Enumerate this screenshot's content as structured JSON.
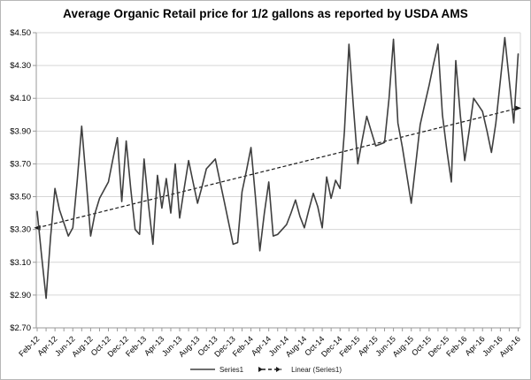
{
  "chart_data": {
    "type": "line",
    "title": "Average Organic Retail price for 1/2 gallons as reported by USDA AMS",
    "xlabel": "",
    "ylabel": "",
    "ylim": [
      2.7,
      4.5
    ],
    "ytick_step": 0.2,
    "ytick_labels": [
      "$2.70",
      "$2.90",
      "$3.10",
      "$3.30",
      "$3.50",
      "$3.70",
      "$3.90",
      "$4.10",
      "$4.30",
      "$4.50"
    ],
    "x_tick_labels": [
      "Feb-12",
      "Apr-12",
      "Jun-12",
      "Aug-12",
      "Oct-12",
      "Dec-12",
      "Feb-13",
      "Apr-13",
      "Jun-13",
      "Aug-13",
      "Oct-13",
      "Dec-13",
      "Feb-14",
      "Apr-14",
      "Jun-14",
      "Aug-14",
      "Oct-14",
      "Dec-14",
      "Feb-15",
      "Apr-15",
      "Jun-15",
      "Aug-15",
      "Oct-15",
      "Dec-15",
      "Feb-16",
      "Apr-16",
      "Jun-16",
      "Aug-16"
    ],
    "points_per_label_interval": 4,
    "cadence": "semi-monthly",
    "grid": "horizontal",
    "legend_position": "bottom",
    "series": [
      {
        "name": "Series1",
        "start": "Feb-12",
        "end": "Aug-16",
        "values": [
          3.41,
          3.14,
          2.88,
          3.25,
          3.55,
          3.42,
          3.34,
          3.26,
          3.31,
          3.6,
          3.93,
          3.6,
          3.26,
          3.4,
          3.49,
          3.54,
          3.59,
          3.73,
          3.86,
          3.47,
          3.84,
          3.55,
          3.3,
          3.27,
          3.73,
          3.45,
          3.21,
          3.63,
          3.43,
          3.61,
          3.4,
          3.7,
          3.37,
          3.55,
          3.72,
          3.59,
          3.46,
          3.56,
          3.67,
          3.7,
          3.73,
          3.6,
          3.47,
          3.34,
          3.21,
          3.22,
          3.53,
          3.66,
          3.8,
          3.5,
          3.17,
          3.4,
          3.59,
          3.26,
          3.27,
          3.3,
          3.33,
          3.4,
          3.48,
          3.38,
          3.31,
          3.42,
          3.52,
          3.44,
          3.31,
          3.62,
          3.49,
          3.6,
          3.55,
          3.9,
          4.43,
          4.05,
          3.7,
          3.85,
          3.99,
          3.9,
          3.81,
          3.82,
          3.83,
          4.1,
          4.46,
          3.95,
          3.8,
          3.63,
          3.46,
          3.7,
          3.94,
          4.06,
          4.18,
          4.31,
          4.43,
          4.0,
          3.78,
          3.59,
          4.33,
          4.0,
          3.72,
          3.9,
          4.1,
          4.06,
          4.02,
          3.9,
          3.77,
          3.95,
          4.21,
          4.47,
          4.21,
          3.95,
          4.37
        ]
      }
    ],
    "trendline": {
      "name": "Linear (Series1)",
      "start_value": 3.31,
      "end_value": 4.04,
      "style": "dashed-double-arrow"
    },
    "colors": {
      "series": "#3f3f3f",
      "trend": "#1a1a1a",
      "grid": "#d6d6d6",
      "axis": "#9a9a9a",
      "text": "#000000",
      "background": "#ffffff",
      "frame_border": "#b7b7b7"
    }
  },
  "legend": {
    "series_label": "Series1",
    "trend_label": "Linear (Series1)"
  }
}
